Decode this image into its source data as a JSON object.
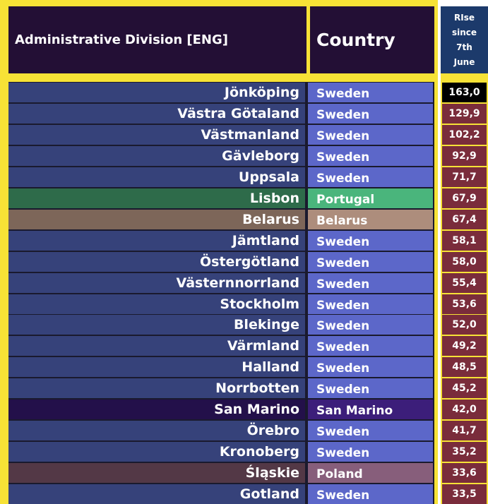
{
  "header": {
    "admin_label": "Administrative Division [ENG]",
    "country_label": "Country",
    "rise_label": "RIse since 7th June"
  },
  "colors": {
    "frame": "#f7e236",
    "header_bg": "#230f35",
    "rise_header_bg": "#1c3a6b",
    "rise_cell": "#7a2c3b",
    "rise_top": "#000000"
  },
  "rows": [
    {
      "division": "Jönköping",
      "country": "Sweden",
      "rise": "163,0",
      "admin_bg": "#36427a",
      "country_bg": "#5c67c9",
      "rise_bg": "#000000"
    },
    {
      "division": "Västra Götaland",
      "country": "Sweden",
      "rise": "129,9",
      "admin_bg": "#36427a",
      "country_bg": "#5c67c9",
      "rise_bg": "#7a2c3b"
    },
    {
      "division": "Västmanland",
      "country": "Sweden",
      "rise": "102,2",
      "admin_bg": "#36427a",
      "country_bg": "#5c67c9",
      "rise_bg": "#7a2c3b"
    },
    {
      "division": "Gävleborg",
      "country": "Sweden",
      "rise": "92,9",
      "admin_bg": "#36427a",
      "country_bg": "#5c67c9",
      "rise_bg": "#7a2c3b"
    },
    {
      "division": "Uppsala",
      "country": "Sweden",
      "rise": "71,7",
      "admin_bg": "#36427a",
      "country_bg": "#5c67c9",
      "rise_bg": "#7a2c3b"
    },
    {
      "division": "Lisbon",
      "country": "Portugal",
      "rise": "67,9",
      "admin_bg": "#2e6b4a",
      "country_bg": "#4ab57c",
      "rise_bg": "#7a2c3b"
    },
    {
      "division": "Belarus",
      "country": "Belarus",
      "rise": "67,4",
      "admin_bg": "#7d6659",
      "country_bg": "#ad8d7c",
      "rise_bg": "#7a2c3b"
    },
    {
      "division": "Jämtland",
      "country": "Sweden",
      "rise": "58,1",
      "admin_bg": "#36427a",
      "country_bg": "#5c67c9",
      "rise_bg": "#7a2c3b"
    },
    {
      "division": "Östergötland",
      "country": "Sweden",
      "rise": "58,0",
      "admin_bg": "#36427a",
      "country_bg": "#5c67c9",
      "rise_bg": "#7a2c3b"
    },
    {
      "division": "Västernnorrland",
      "country": "Sweden",
      "rise": "55,4",
      "admin_bg": "#36427a",
      "country_bg": "#5c67c9",
      "rise_bg": "#7a2c3b"
    },
    {
      "division": "Stockholm",
      "country": "Sweden",
      "rise": "53,6",
      "admin_bg": "#36427a",
      "country_bg": "#5c67c9",
      "rise_bg": "#7a2c3b"
    },
    {
      "division": "Blekinge",
      "country": "Sweden",
      "rise": "52,0",
      "admin_bg": "#36427a",
      "country_bg": "#5c67c9",
      "rise_bg": "#7a2c3b"
    },
    {
      "division": "Värmland",
      "country": "Sweden",
      "rise": "49,2",
      "admin_bg": "#36427a",
      "country_bg": "#5c67c9",
      "rise_bg": "#7a2c3b"
    },
    {
      "division": "Halland",
      "country": "Sweden",
      "rise": "48,5",
      "admin_bg": "#36427a",
      "country_bg": "#5c67c9",
      "rise_bg": "#7a2c3b"
    },
    {
      "division": "Norrbotten",
      "country": "Sweden",
      "rise": "45,2",
      "admin_bg": "#36427a",
      "country_bg": "#5c67c9",
      "rise_bg": "#7a2c3b"
    },
    {
      "division": "San Marino",
      "country": "San Marino",
      "rise": "42,0",
      "admin_bg": "#23104a",
      "country_bg": "#3c1e7a",
      "rise_bg": "#7a2c3b"
    },
    {
      "division": "Örebro",
      "country": "Sweden",
      "rise": "41,7",
      "admin_bg": "#36427a",
      "country_bg": "#5c67c9",
      "rise_bg": "#7a2c3b"
    },
    {
      "division": "Kronoberg",
      "country": "Sweden",
      "rise": "35,2",
      "admin_bg": "#36427a",
      "country_bg": "#5c67c9",
      "rise_bg": "#7a2c3b"
    },
    {
      "division": "Śląskie",
      "country": "Poland",
      "rise": "33,6",
      "admin_bg": "#533846",
      "country_bg": "#875e7b",
      "rise_bg": "#7a2c3b"
    },
    {
      "division": "Gotland",
      "country": "Sweden",
      "rise": "33,5",
      "admin_bg": "#36427a",
      "country_bg": "#5c67c9",
      "rise_bg": "#7a2c3b"
    }
  ]
}
